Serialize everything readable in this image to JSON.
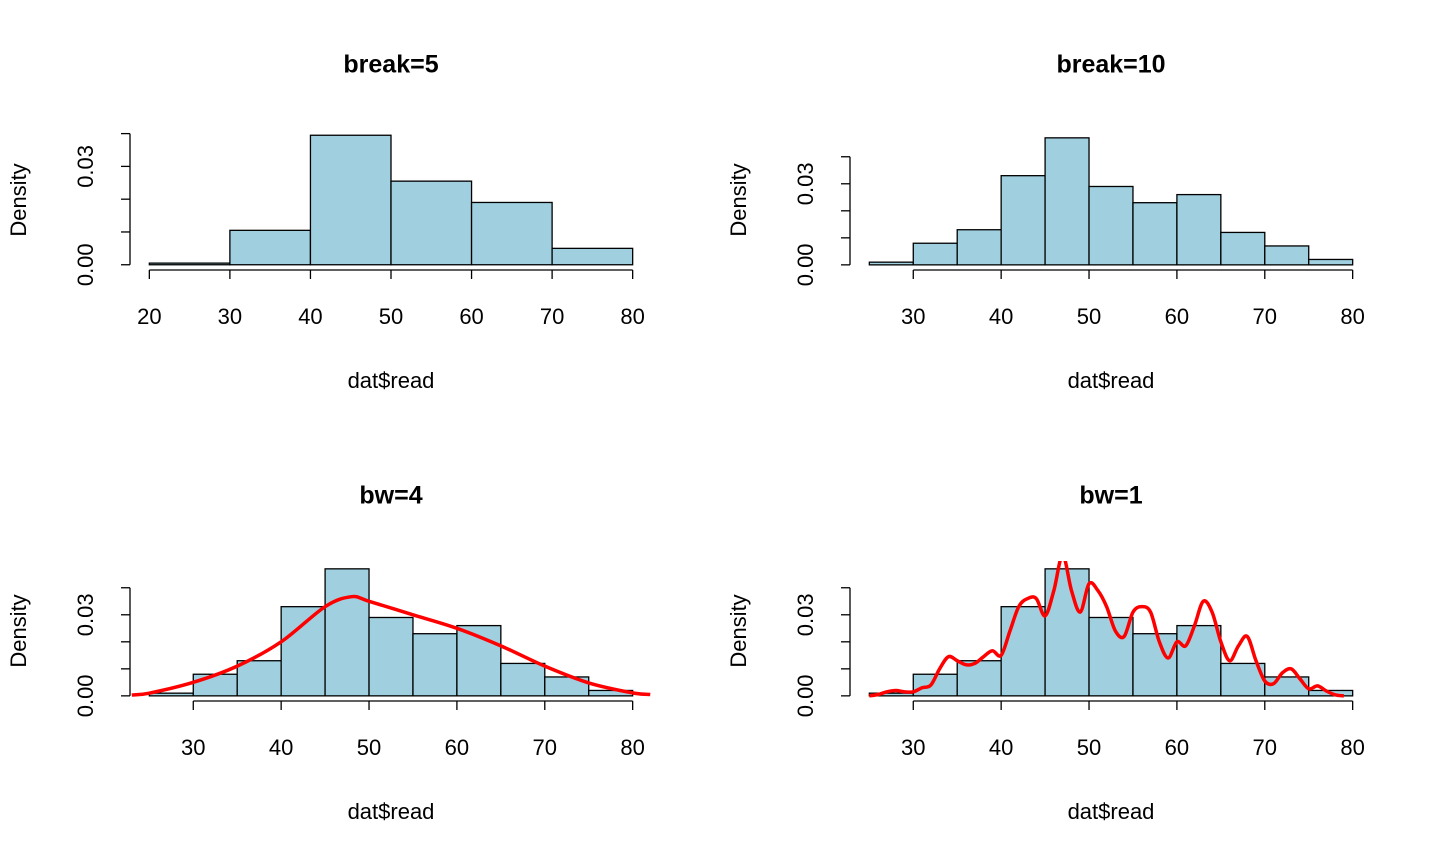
{
  "chart_data": [
    {
      "type": "histogram",
      "title": "break=5",
      "xlabel": "dat$read",
      "ylabel": "Density",
      "bins": [
        20,
        30,
        40,
        50,
        60,
        70,
        80
      ],
      "values": [
        0.0005,
        0.0105,
        0.0395,
        0.0255,
        0.019,
        0.005
      ],
      "color": "#a0d0e0",
      "xlim": [
        17.6,
        82.4
      ],
      "ylim": [
        -0.0016,
        0.0411
      ],
      "xticks": [
        20,
        30,
        40,
        50,
        60,
        70,
        80
      ],
      "yticks": [
        {
          "value": 0,
          "label": "0.00"
        },
        {
          "value": 0.01,
          "label": null
        },
        {
          "value": 0.02,
          "label": null
        },
        {
          "value": 0.03,
          "label": "0.03"
        },
        {
          "value": 0.04,
          "label": null
        }
      ]
    },
    {
      "type": "histogram",
      "title": "break=10",
      "xlabel": "dat$read",
      "ylabel": "Density",
      "bins": [
        25,
        30,
        35,
        40,
        45,
        50,
        55,
        60,
        65,
        70,
        75,
        80
      ],
      "values": [
        0.001,
        0.008,
        0.013,
        0.033,
        0.047,
        0.029,
        0.023,
        0.026,
        0.012,
        0.007,
        0.002
      ],
      "color": "#a0d0e0",
      "xlim": [
        22.8,
        82.2
      ],
      "ylim": [
        -0.0019,
        0.0499
      ],
      "xticks": [
        30,
        40,
        50,
        60,
        70,
        80
      ],
      "yticks": [
        {
          "value": 0,
          "label": "0.00"
        },
        {
          "value": 0.01,
          "label": null
        },
        {
          "value": 0.02,
          "label": null
        },
        {
          "value": 0.03,
          "label": "0.03"
        },
        {
          "value": 0.04,
          "label": null
        }
      ]
    },
    {
      "type": "histogram",
      "title": "bw=4",
      "xlabel": "dat$read",
      "ylabel": "Density",
      "bins": [
        25,
        30,
        35,
        40,
        45,
        50,
        55,
        60,
        65,
        70,
        75,
        80
      ],
      "values": [
        0.001,
        0.008,
        0.013,
        0.033,
        0.047,
        0.029,
        0.023,
        0.026,
        0.012,
        0.007,
        0.002
      ],
      "color": "#a0d0e0",
      "xlim": [
        22.8,
        82.2
      ],
      "ylim": [
        -0.0019,
        0.0499
      ],
      "xticks": [
        30,
        40,
        50,
        60,
        70,
        80
      ],
      "yticks": [
        {
          "value": 0,
          "label": "0.00"
        },
        {
          "value": 0.01,
          "label": null
        },
        {
          "value": 0.02,
          "label": null
        },
        {
          "value": 0.03,
          "label": "0.03"
        },
        {
          "value": 0.04,
          "label": null
        }
      ],
      "density": {
        "color": "#ff0000",
        "x": [
          23,
          25,
          30,
          35,
          40,
          45,
          48,
          50,
          55,
          60,
          65,
          70,
          75,
          80,
          82
        ],
        "y": [
          0.0003,
          0.001,
          0.005,
          0.011,
          0.02,
          0.033,
          0.0367,
          0.035,
          0.03,
          0.025,
          0.0185,
          0.011,
          0.0048,
          0.0011,
          0.0005
        ]
      }
    },
    {
      "type": "histogram",
      "title": "bw=1",
      "xlabel": "dat$read",
      "ylabel": "Density",
      "bins": [
        25,
        30,
        35,
        40,
        45,
        50,
        55,
        60,
        65,
        70,
        75,
        80
      ],
      "values": [
        0.001,
        0.008,
        0.013,
        0.033,
        0.047,
        0.029,
        0.023,
        0.026,
        0.012,
        0.007,
        0.002
      ],
      "color": "#a0d0e0",
      "xlim": [
        22.8,
        82.2
      ],
      "ylim": [
        -0.0019,
        0.0499
      ],
      "xticks": [
        30,
        40,
        50,
        60,
        70,
        80
      ],
      "yticks": [
        {
          "value": 0,
          "label": "0.00"
        },
        {
          "value": 0.01,
          "label": null
        },
        {
          "value": 0.02,
          "label": null
        },
        {
          "value": 0.03,
          "label": "0.03"
        },
        {
          "value": 0.04,
          "label": null
        }
      ],
      "density": {
        "color": "#ff0000",
        "x": [
          25,
          26,
          27,
          28,
          29,
          30,
          31,
          32,
          33,
          34,
          35,
          36,
          37,
          38,
          39,
          40,
          41,
          42,
          43,
          44,
          45,
          46,
          47,
          48,
          49,
          50,
          51,
          52,
          53,
          54,
          55,
          56,
          57,
          58,
          59,
          60,
          61,
          62,
          63,
          64,
          65,
          66,
          67,
          68,
          69,
          70,
          71,
          72,
          73,
          74,
          75,
          76,
          77,
          78,
          79
        ],
        "y": [
          0,
          0.0005,
          0.0015,
          0.002,
          0.0015,
          0.0015,
          0.003,
          0.004,
          0.01,
          0.0145,
          0.013,
          0.0115,
          0.012,
          0.0145,
          0.0167,
          0.015,
          0.024,
          0.033,
          0.036,
          0.036,
          0.0296,
          0.039,
          0.052,
          0.039,
          0.031,
          0.0415,
          0.039,
          0.033,
          0.024,
          0.022,
          0.031,
          0.033,
          0.031,
          0.02,
          0.014,
          0.02,
          0.0185,
          0.026,
          0.035,
          0.031,
          0.02,
          0.013,
          0.0185,
          0.022,
          0.013,
          0.0055,
          0.0045,
          0.0085,
          0.01,
          0.0063,
          0.0026,
          0.0037,
          0.0018,
          0.0004,
          0
        ]
      }
    }
  ]
}
